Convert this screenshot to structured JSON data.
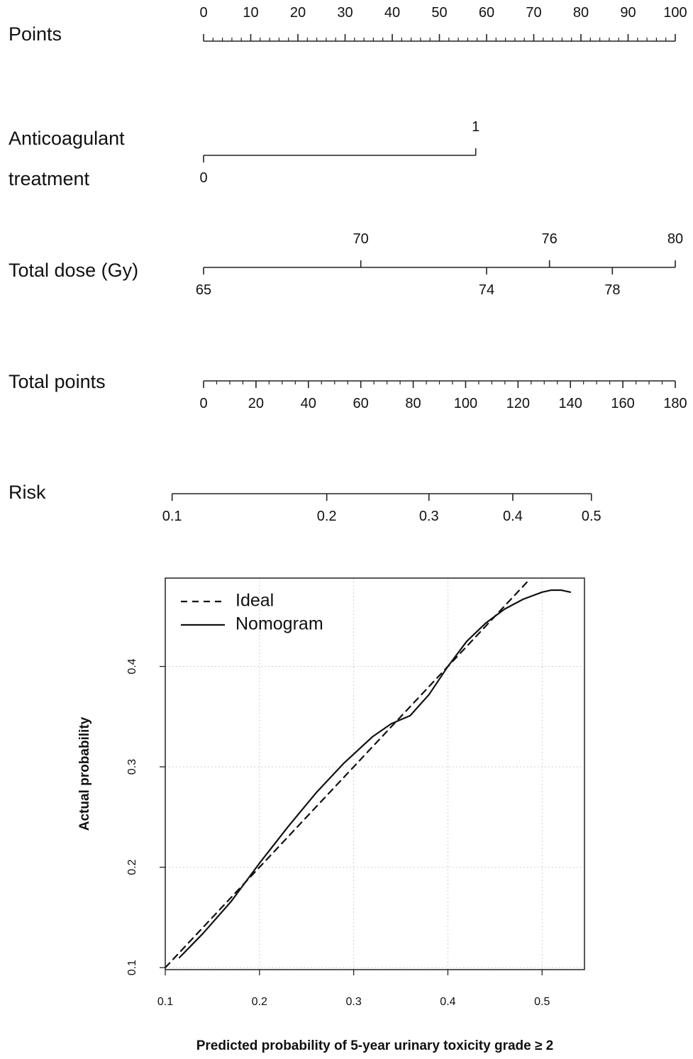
{
  "chart_data": [
    {
      "type": "nomogram",
      "rows": [
        {
          "name": "points",
          "label": "Points",
          "label_lines": [
            "Points"
          ],
          "range": [
            0,
            100
          ],
          "labeled_ticks": [
            0,
            10,
            20,
            30,
            40,
            50,
            60,
            70,
            80,
            90,
            100
          ],
          "minor_step": 2,
          "labels_above": [
            0,
            10,
            20,
            30,
            40,
            50,
            60,
            70,
            80,
            90,
            100
          ],
          "labels_below": []
        },
        {
          "name": "anticoagulant",
          "label": "Anticoagulant treatment",
          "label_lines": [
            "Anticoagulant",
            "treatment"
          ],
          "range": [
            0,
            1
          ],
          "labeled_ticks": [
            0,
            1
          ],
          "points": [
            0,
            57.7
          ],
          "labels_above": [
            1
          ],
          "labels_below": [
            0
          ]
        },
        {
          "name": "total-dose",
          "label": "Total dose (Gy)",
          "label_lines": [
            "Total dose (Gy)"
          ],
          "range": [
            65,
            80
          ],
          "labeled_ticks": [
            65,
            70,
            74,
            76,
            78,
            80
          ],
          "labels_above": [
            70,
            76,
            80
          ],
          "labels_below": [
            65,
            74,
            78
          ]
        },
        {
          "name": "total-points",
          "label": "Total points",
          "label_lines": [
            "Total points"
          ],
          "range": [
            0,
            180
          ],
          "labeled_ticks": [
            0,
            20,
            40,
            60,
            80,
            100,
            120,
            140,
            160,
            180
          ],
          "minor_step": 5,
          "labels_above": [],
          "labels_below": [
            0,
            20,
            40,
            60,
            80,
            100,
            120,
            140,
            160,
            180
          ]
        },
        {
          "name": "risk",
          "label": "Risk",
          "label_lines": [
            "Risk"
          ],
          "range": [
            0.1,
            0.5
          ],
          "labeled_ticks": [
            "0.1",
            "0.2",
            "0.3",
            "0.4",
            "0.5"
          ],
          "total_points_at_ticks": [
            -12,
            47,
            86,
            118,
            148
          ],
          "labels_above": [],
          "labels_below": [
            "0.1",
            "0.2",
            "0.3",
            "0.4",
            "0.5"
          ]
        }
      ]
    },
    {
      "type": "line",
      "xlabel": "Predicted probability of 5-year urinary toxicity grade ≥ 2",
      "ylabel": "Actual probability",
      "xlim": [
        0.1,
        0.545
      ],
      "ylim": [
        0.098,
        0.488
      ],
      "xticks": [
        "0.1",
        "0.2",
        "0.3",
        "0.4",
        "0.5"
      ],
      "yticks": [
        "0.1",
        "0.2",
        "0.3",
        "0.4"
      ],
      "grid": true,
      "legend_position": "top-left",
      "series": [
        {
          "name": "Ideal",
          "style": "dashed",
          "x": [
            0.1,
            0.484
          ],
          "y": [
            0.1,
            0.484
          ]
        },
        {
          "name": "Nomogram",
          "style": "solid",
          "x": [
            0.115,
            0.14,
            0.17,
            0.2,
            0.23,
            0.26,
            0.29,
            0.32,
            0.34,
            0.36,
            0.38,
            0.4,
            0.42,
            0.44,
            0.46,
            0.48,
            0.5,
            0.51,
            0.52,
            0.53
          ],
          "y": [
            0.11,
            0.134,
            0.166,
            0.204,
            0.24,
            0.274,
            0.304,
            0.33,
            0.343,
            0.351,
            0.372,
            0.4,
            0.425,
            0.443,
            0.457,
            0.467,
            0.474,
            0.476,
            0.476,
            0.474
          ]
        }
      ]
    }
  ]
}
